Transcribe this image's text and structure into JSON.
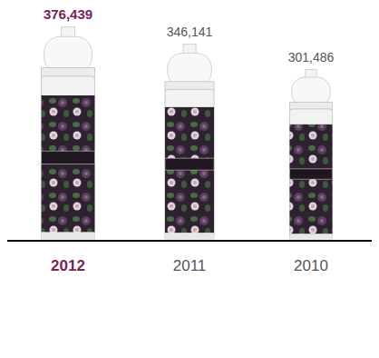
{
  "chart_data": {
    "type": "bar",
    "categories": [
      "2012",
      "2011",
      "2010"
    ],
    "values": [
      376439,
      346141,
      301486
    ],
    "value_labels": [
      "376,439",
      "346,141",
      "301,486"
    ],
    "data_labels": true,
    "ylim": [
      0,
      400000
    ],
    "yticks": [],
    "tick_labels": "x"
  }
}
